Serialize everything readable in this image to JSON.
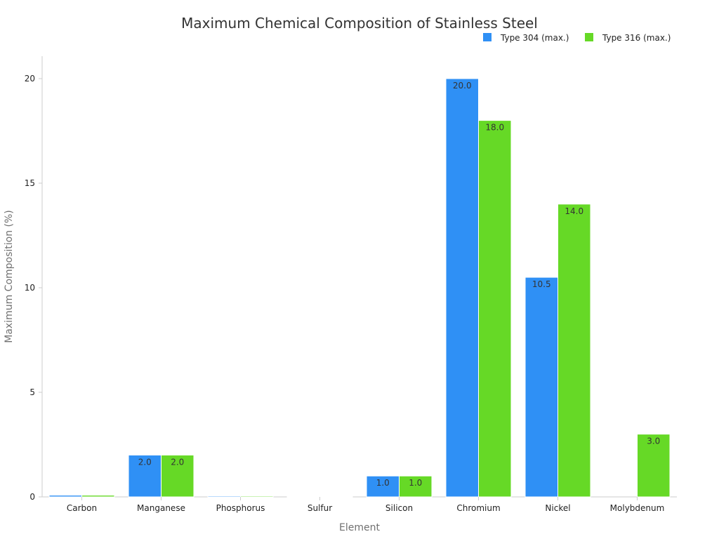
{
  "chart_data": {
    "type": "bar",
    "title": "Maximum Chemical Composition of Stainless Steel",
    "xlabel": "Element",
    "ylabel": "Maximum Composition (%)",
    "categories": [
      "Carbon",
      "Manganese",
      "Phosphorus",
      "Sulfur",
      "Silicon",
      "Chromium",
      "Nickel",
      "Molybdenum"
    ],
    "series": [
      {
        "name": "Type 304 (max.)",
        "color": "#2f90f5",
        "values": [
          0.08,
          2.0,
          0.045,
          0.03,
          1.0,
          20.0,
          10.5,
          0
        ],
        "labels": [
          "",
          "2.0",
          "",
          "",
          "1.0",
          "20.0",
          "10.5",
          ""
        ]
      },
      {
        "name": "Type 316 (max.)",
        "color": "#66d926",
        "values": [
          0.08,
          2.0,
          0.045,
          0.03,
          1.0,
          18.0,
          14.0,
          3.0
        ],
        "labels": [
          "",
          "2.0",
          "",
          "",
          "1.0",
          "18.0",
          "14.0",
          "3.0"
        ]
      }
    ],
    "yticks": [
      0,
      5,
      10,
      15,
      20
    ],
    "ylim": [
      0,
      21
    ],
    "grid": false,
    "legend_position": "top-right"
  }
}
